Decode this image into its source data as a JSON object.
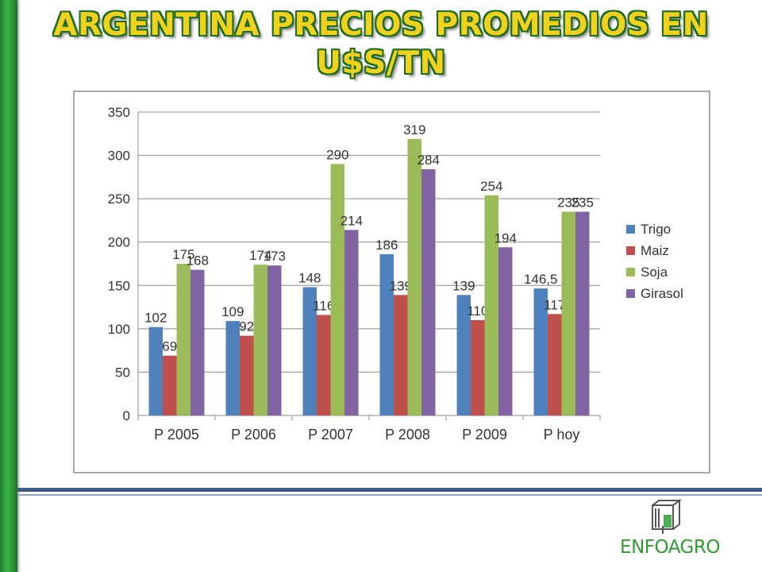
{
  "title": "ARGENTINA PRECIOS PROMEDIOS EN U$S/TN",
  "logo": {
    "text": "ENFOAGRO"
  },
  "colors": {
    "trigo": "#4f81bd",
    "maiz": "#c0504d",
    "soja": "#9bbb59",
    "girasol": "#8064a2"
  },
  "chart_data": {
    "type": "bar",
    "categories": [
      "P 2005",
      "P 2006",
      "P 2007",
      "P 2008",
      "P 2009",
      "P hoy"
    ],
    "series": [
      {
        "name": "Trigo",
        "values": [
          102,
          109,
          148,
          186,
          139,
          146.5
        ],
        "labels": [
          "102",
          "109",
          "148",
          "186",
          "139",
          "146,5"
        ]
      },
      {
        "name": "Maiz",
        "values": [
          69,
          92,
          116,
          139,
          110,
          117
        ],
        "labels": [
          "69",
          "92",
          "116",
          "139",
          "110",
          "117"
        ]
      },
      {
        "name": "Soja",
        "values": [
          175,
          174,
          290,
          319,
          254,
          235
        ],
        "labels": [
          "175",
          "174",
          "290",
          "319",
          "254",
          "235"
        ]
      },
      {
        "name": "Girasol",
        "values": [
          168,
          173,
          214,
          284,
          194,
          235
        ],
        "labels": [
          "168",
          "173",
          "214",
          "284",
          "194",
          "235"
        ]
      }
    ],
    "ylim": [
      0,
      350
    ],
    "yticks": [
      "0",
      "50",
      "100",
      "150",
      "200",
      "250",
      "300",
      "350"
    ],
    "grid": true,
    "legend": "right"
  }
}
